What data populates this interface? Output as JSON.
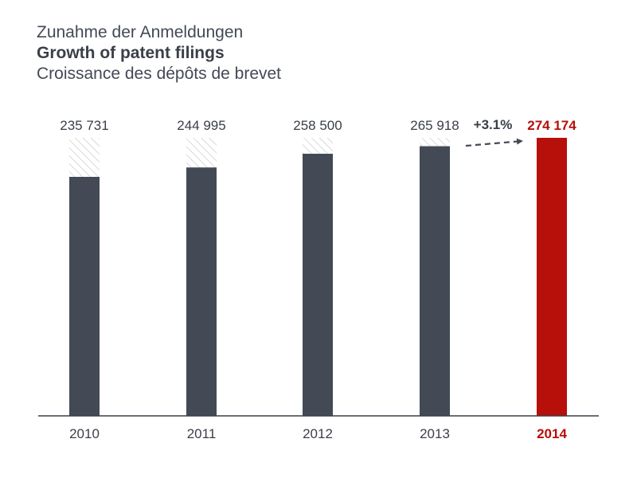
{
  "titles": {
    "de": "Zunahme der Anmeldungen",
    "en": "Growth of patent filings",
    "fr": "Croissance des dépôts de brevet"
  },
  "chart_data": {
    "type": "bar",
    "categories": [
      "2010",
      "2011",
      "2012",
      "2013",
      "2014"
    ],
    "value_labels": [
      "235 731",
      "244 995",
      "258 500",
      "265 918",
      "274 174"
    ],
    "values": [
      235731,
      244995,
      258500,
      265918,
      274174
    ],
    "growth_annotation": "+3.1%",
    "highlight_index": 4,
    "colors": {
      "bar": "#434a56",
      "highlight": "#b70f0a",
      "axis": "#3a3f48",
      "hatch": "#cfcfcf"
    },
    "grid": false,
    "title": "Growth of patent filings"
  }
}
